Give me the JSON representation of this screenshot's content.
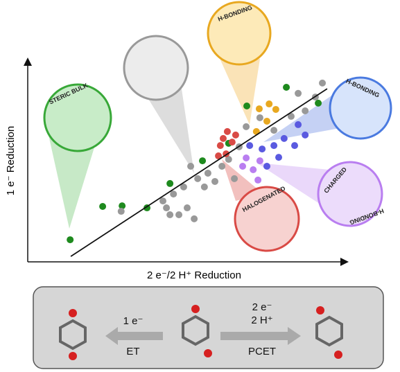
{
  "chart_data": {
    "type": "scatter",
    "x_label": "2 e⁻/2 H⁺ Reduction",
    "y_label": "1 e⁻ Reduction",
    "xlim": [
      0,
      100
    ],
    "ylim": [
      0,
      100
    ],
    "series": [
      {
        "color": "#1e8a1e",
        "x": [
          13.3,
          23.5,
          29.6,
          37.4,
          44.6,
          54.8,
          63.0,
          68.7,
          81.1,
          91.1
        ],
        "y": [
          10.9,
          27.3,
          27.6,
          26.6,
          38.6,
          49.8,
          58.4,
          76.8,
          86.0,
          78.2
        ]
      },
      {
        "color": "#999999",
        "x": [
          29.3,
          42.4,
          45.7,
          48.9,
          51.1,
          53.3,
          56.5,
          58.7,
          55.4,
          60.9,
          63.0,
          50.0,
          43.5,
          47.4,
          52.2,
          64.8,
          44.6,
          68.5,
          72.8,
          77.2,
          82.6,
          87.0,
          90.2,
          92.4,
          84.8,
          66.3
        ],
        "y": [
          24.9,
          30.0,
          33.4,
          36.9,
          47.1,
          41.0,
          43.7,
          39.6,
          36.9,
          47.1,
          50.5,
          26.6,
          26.6,
          23.2,
          21.2,
          41.0,
          23.2,
          66.6,
          71.0,
          64.8,
          71.7,
          74.4,
          81.2,
          88.1,
          83.0,
          56.7
        ]
      },
      {
        "color": "#d94a45",
        "x": [
          60.4,
          61.3,
          62.6,
          64.1,
          62.2,
          65.2,
          59.8
        ],
        "y": [
          57.3,
          60.8,
          64.2,
          59.0,
          53.2,
          62.5,
          52.2
        ]
      },
      {
        "color": "#e8a820",
        "x": [
          72.6,
          75.7,
          77.8,
          75.0,
          71.7
        ],
        "y": [
          75.4,
          77.8,
          75.1,
          69.3,
          64.2
        ]
      },
      {
        "color": "#5a5ae0",
        "x": [
          73.5,
          77.2,
          80.4,
          83.7,
          87.0,
          78.7,
          75.0,
          69.6,
          84.8
        ],
        "y": [
          55.6,
          57.3,
          60.8,
          57.3,
          62.5,
          51.5,
          47.1,
          57.3,
          67.6
        ]
      },
      {
        "color": "#b97ef0",
        "x": [
          68.5,
          70.7,
          72.8,
          67.4,
          72.2
        ],
        "y": [
          51.2,
          45.4,
          49.8,
          47.1,
          40.3
        ]
      }
    ],
    "trend_line": {
      "x": [
        13.5,
        93.9
      ],
      "y": [
        2.7,
        85.3
      ]
    },
    "annotations": [
      "STERIC BULK",
      "H-BONDING",
      "H-BONDING",
      "HALOGENATED",
      "CHARGED",
      "H-BONDING"
    ]
  },
  "scheme": {
    "left": [
      "1 e⁻",
      "ET"
    ],
    "right": [
      "2 e⁻",
      "2 H⁺",
      "PCET"
    ]
  }
}
